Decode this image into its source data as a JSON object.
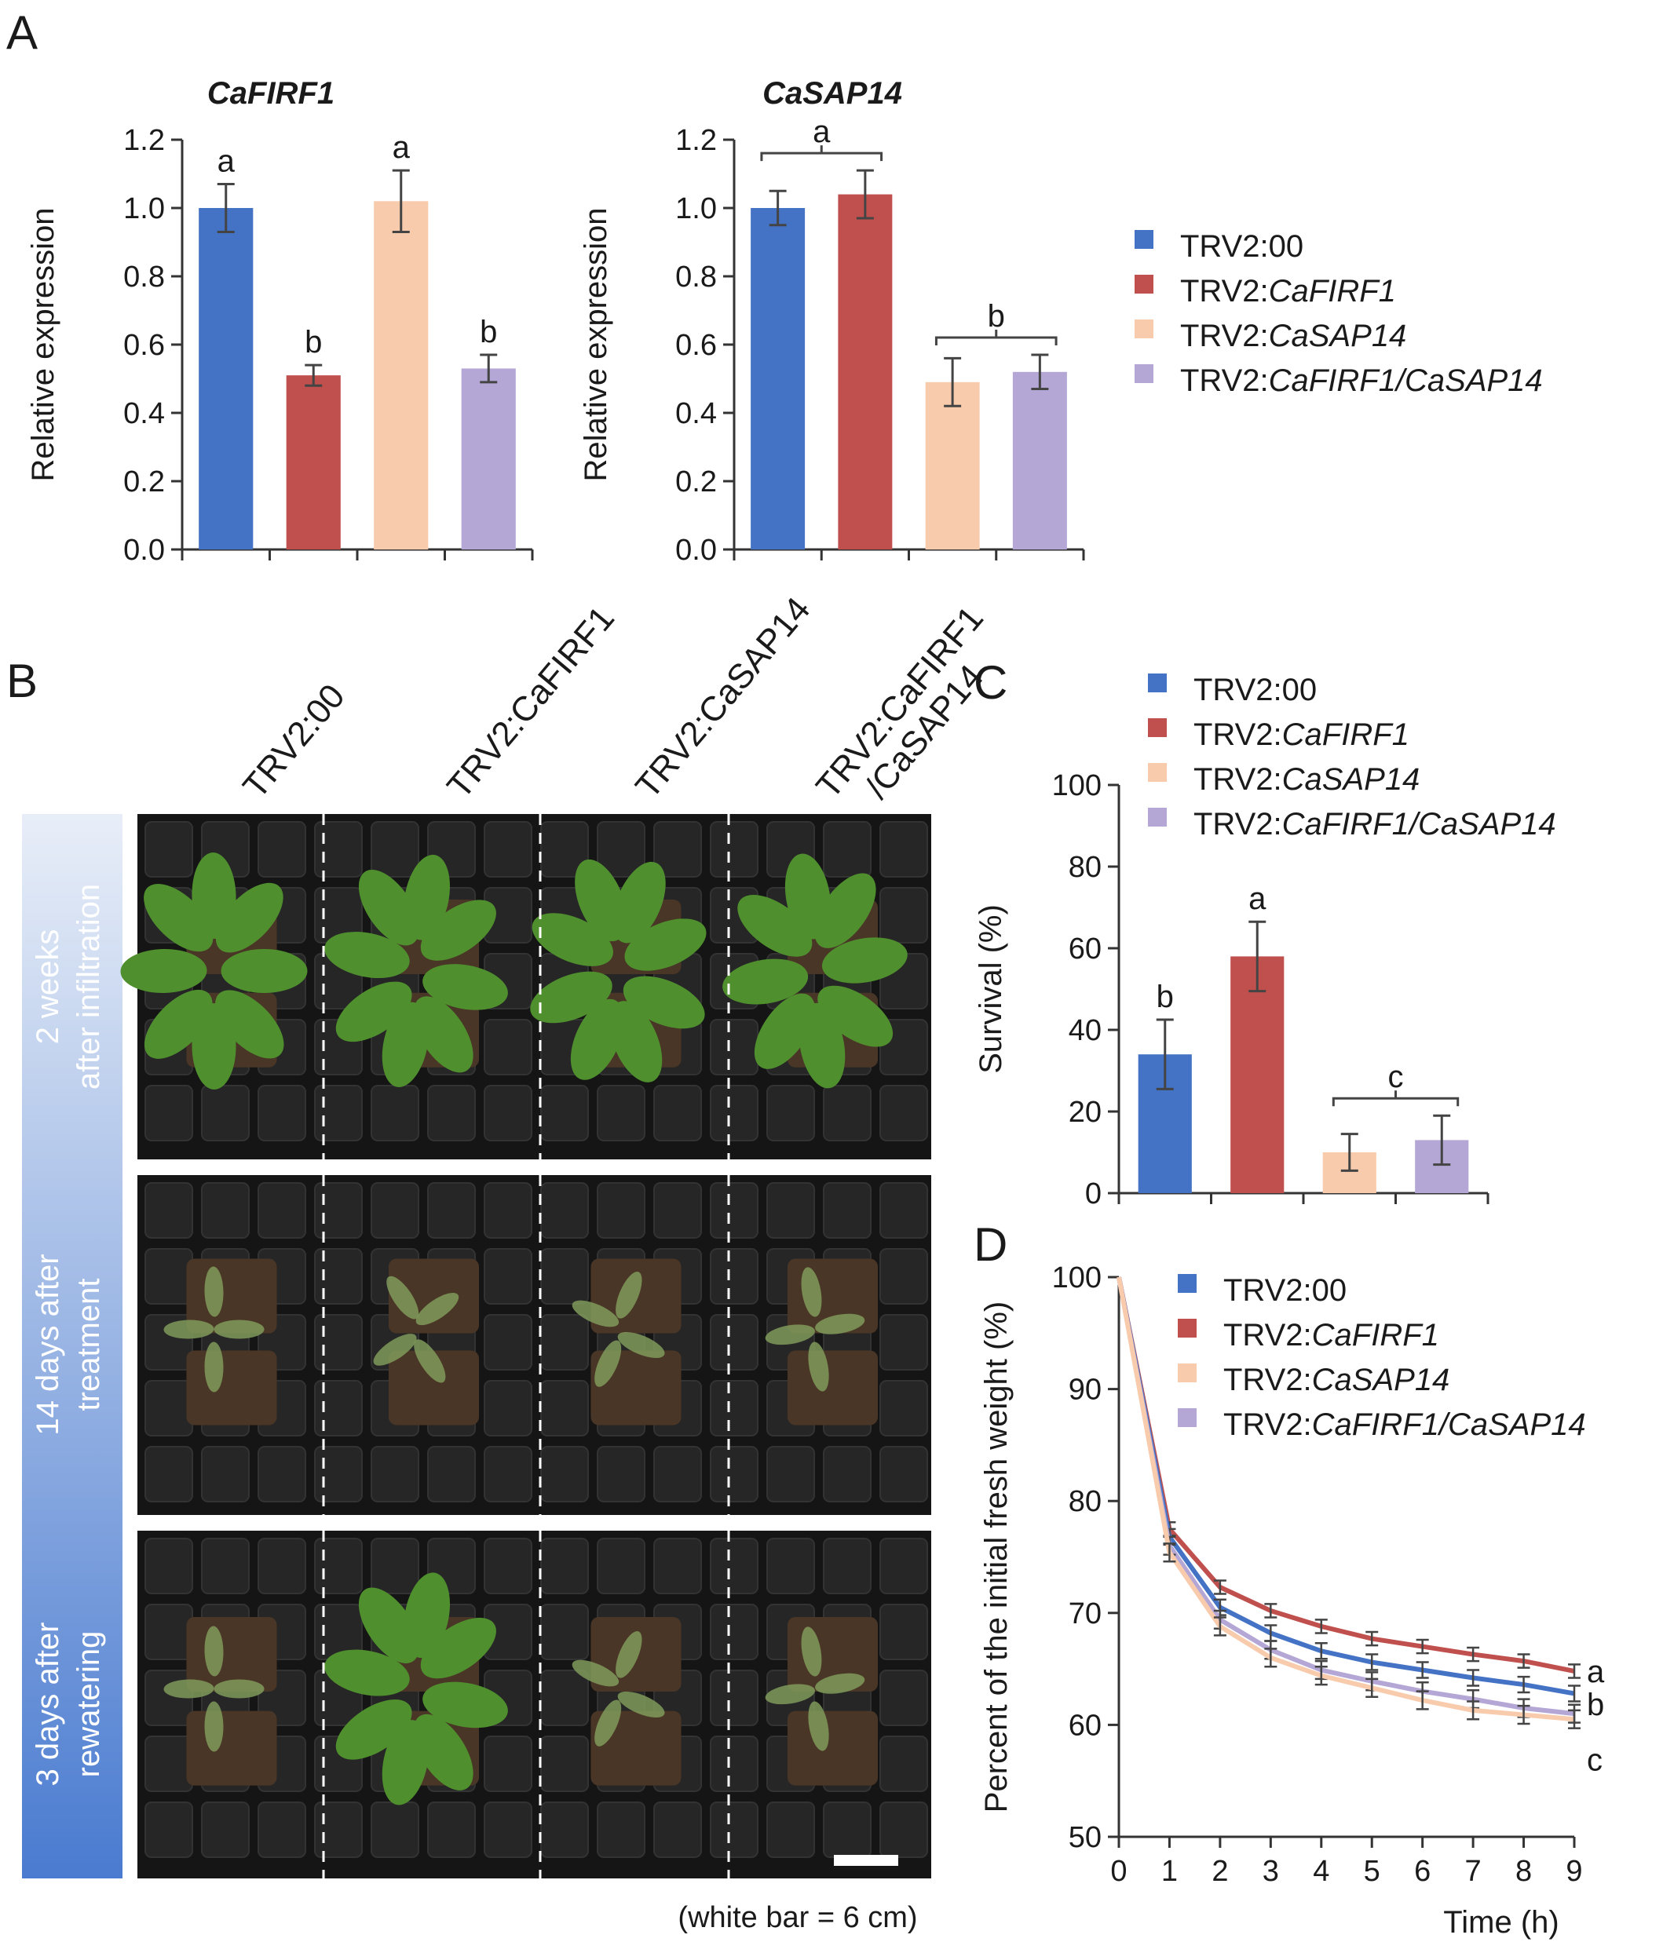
{
  "panels": {
    "A": "A",
    "B": "B",
    "C": "C",
    "D": "D"
  },
  "legend": [
    {
      "prefix": "TRV2:",
      "italic": "00",
      "plain": true,
      "color": "#4472c4"
    },
    {
      "prefix": "TRV2:",
      "italic": "CaFIRF1",
      "plain": false,
      "color": "#c0504d"
    },
    {
      "prefix": "TRV2:",
      "italic": "CaSAP14",
      "plain": false,
      "color": "#f8cbad"
    },
    {
      "prefix": "TRV2:",
      "italic": "CaFIRF1/CaSAP14",
      "plain": false,
      "color": "#b4a7d6"
    }
  ],
  "photo": {
    "columns": [
      "TRV2:00",
      "TRV2:CaFIRF1",
      "TRV2:CaSAP14",
      "TRV2:CaFIRF1\n/CaSAP14"
    ],
    "rows": [
      "2 weeks\nafter infiltration",
      "14 days after\ntreatment",
      "3 days after\nrewatering"
    ],
    "caption": "(white bar = 6 cm)"
  },
  "chart_data": [
    {
      "id": "A1",
      "type": "bar",
      "title": "CaFIRF1",
      "ylabel": "Relative expression",
      "ylim": [
        0,
        1.2
      ],
      "yticks": [
        "0.0",
        "0.2",
        "0.4",
        "0.6",
        "0.8",
        "1.0",
        "1.2"
      ],
      "categories": [
        "TRV2:00",
        "TRV2:CaFIRF1",
        "TRV2:CaSAP14",
        "TRV2:CaFIRF1/CaSAP14"
      ],
      "values": [
        1.0,
        0.51,
        1.02,
        0.53
      ],
      "errors": [
        0.07,
        0.03,
        0.09,
        0.04
      ],
      "letters": [
        "a",
        "b",
        "a",
        "b"
      ],
      "colors": [
        "#4472c4",
        "#c0504d",
        "#f8cbad",
        "#b4a7d6"
      ]
    },
    {
      "id": "A2",
      "type": "bar",
      "title": "CaSAP14",
      "ylabel": "Relative expression",
      "ylim": [
        0,
        1.2
      ],
      "yticks": [
        "0.0",
        "0.2",
        "0.4",
        "0.6",
        "0.8",
        "1.0",
        "1.2"
      ],
      "categories": [
        "TRV2:00",
        "TRV2:CaFIRF1",
        "TRV2:CaSAP14",
        "TRV2:CaFIRF1/CaSAP14"
      ],
      "values": [
        1.0,
        1.04,
        0.49,
        0.52
      ],
      "errors": [
        0.05,
        0.07,
        0.07,
        0.05
      ],
      "group_letters": [
        {
          "letter": "a",
          "bars": [
            0,
            1
          ]
        },
        {
          "letter": "b",
          "bars": [
            2,
            3
          ]
        }
      ],
      "colors": [
        "#4472c4",
        "#c0504d",
        "#f8cbad",
        "#b4a7d6"
      ]
    },
    {
      "id": "C",
      "type": "bar",
      "ylabel": "Survival (%)",
      "ylim": [
        0,
        100
      ],
      "yticks": [
        "0",
        "20",
        "40",
        "60",
        "80",
        "100"
      ],
      "categories": [
        "TRV2:00",
        "TRV2:CaFIRF1",
        "TRV2:CaSAP14",
        "TRV2:CaFIRF1/CaSAP14"
      ],
      "values": [
        34,
        58,
        10,
        13
      ],
      "errors": [
        8.5,
        8.5,
        4.5,
        6.0
      ],
      "letters": [
        "b",
        "a",
        null,
        null
      ],
      "group_letters": [
        {
          "letter": "c",
          "bars": [
            2,
            3
          ]
        }
      ],
      "colors": [
        "#4472c4",
        "#c0504d",
        "#f8cbad",
        "#b4a7d6"
      ]
    },
    {
      "id": "D",
      "type": "line",
      "ylabel": "Percent of the initial fresh weight (%)",
      "xlabel": "Time (h)",
      "ylim": [
        50,
        100
      ],
      "xlim": [
        0,
        9
      ],
      "yticks": [
        "50",
        "60",
        "70",
        "80",
        "90",
        "100"
      ],
      "xticks": [
        "0",
        "1",
        "2",
        "3",
        "4",
        "5",
        "6",
        "7",
        "8",
        "9"
      ],
      "x": [
        0,
        1,
        2,
        3,
        4,
        5,
        6,
        7,
        8,
        9
      ],
      "series": [
        {
          "color": "#c0504d",
          "values": [
            100,
            77.5,
            72.3,
            70.2,
            68.8,
            67.7,
            67.0,
            66.3,
            65.7,
            64.8
          ],
          "err": 0.6,
          "end_letter": "a"
        },
        {
          "color": "#4472c4",
          "values": [
            100,
            76.8,
            70.5,
            68.2,
            66.6,
            65.6,
            64.9,
            64.2,
            63.6,
            62.8
          ],
          "err": 0.7,
          "end_letter": "b"
        },
        {
          "color": "#b4a7d6",
          "values": [
            100,
            76.0,
            69.4,
            66.7,
            64.9,
            63.9,
            63.0,
            62.3,
            61.5,
            61.0
          ],
          "err": 0.8,
          "end_letter": ""
        },
        {
          "color": "#f8cbad",
          "values": [
            100,
            75.4,
            68.8,
            66.0,
            64.4,
            63.3,
            62.2,
            61.3,
            60.9,
            60.5
          ],
          "err": 0.8,
          "end_letter": "c"
        }
      ]
    }
  ]
}
